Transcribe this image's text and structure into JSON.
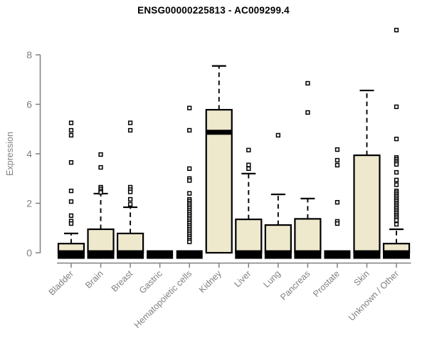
{
  "chart_data": {
    "type": "boxplot",
    "title": "ENSG00000225813 - AC009299.4",
    "ylabel": "Expression",
    "xlabel": "",
    "yticks": [
      0,
      2,
      4,
      6,
      8
    ],
    "ylim": [
      0,
      9.2
    ],
    "grid": false,
    "legend": "none",
    "box_fill_color": "#EEE8CD",
    "box_border_color": "#000000",
    "axis_color": "#808080",
    "title_color": "#000000",
    "categories": [
      "Bladder",
      "Brain",
      "Breast",
      "Gastric",
      "Hematopoietic cells",
      "Kidney",
      "Liver",
      "Lung",
      "Pancreas",
      "Prostate",
      "Skin",
      "Unknown / Other"
    ],
    "boxes": [
      {
        "category": "Bladder",
        "q1": 0,
        "median": 0.05,
        "q3": 0.37,
        "whisker_high": 0.78,
        "outliers": [
          5.25,
          4.95,
          4.75,
          3.65,
          2.5,
          2.07,
          1.5,
          1.28,
          1.18
        ]
      },
      {
        "category": "Brain",
        "q1": 0,
        "median": 0.05,
        "q3": 0.95,
        "whisker_high": 2.39,
        "outliers": [
          3.97,
          3.45,
          2.65,
          2.58,
          2.5,
          2.44
        ]
      },
      {
        "category": "Breast",
        "q1": 0,
        "median": 0.05,
        "q3": 0.78,
        "whisker_high": 1.84,
        "outliers": [
          5.25,
          4.95,
          2.65,
          2.55,
          2.46,
          2.16,
          1.96
        ]
      },
      {
        "category": "Gastric",
        "q1": 0,
        "median": 0,
        "q3": 0,
        "whisker_high": null,
        "outliers": []
      },
      {
        "category": "Hematopoietic cells",
        "q1": 0,
        "median": 0,
        "q3": 0,
        "whisker_high": null,
        "outliers": [
          5.85,
          4.95,
          3.4,
          3.0,
          2.92,
          2.4,
          2.16,
          2.09,
          2.01,
          1.94,
          1.86,
          1.79,
          1.71,
          1.64,
          1.56,
          1.49,
          1.41,
          1.34,
          1.26,
          1.19,
          1.11,
          1.04,
          0.96,
          0.89,
          0.81,
          0.74,
          0.66,
          0.59,
          0.51,
          0.44
        ]
      },
      {
        "category": "Kidney",
        "q1": 0,
        "median": 4.87,
        "q3": 5.78,
        "whisker_high": 7.55,
        "outliers": []
      },
      {
        "category": "Liver",
        "q1": 0,
        "median": 0.05,
        "q3": 1.35,
        "whisker_high": 3.2,
        "outliers": [
          4.15,
          3.55,
          3.4
        ]
      },
      {
        "category": "Lung",
        "q1": 0,
        "median": 0.05,
        "q3": 1.12,
        "whisker_high": 2.36,
        "outliers": [
          4.75
        ]
      },
      {
        "category": "Pancreas",
        "q1": 0,
        "median": 0.05,
        "q3": 1.37,
        "whisker_high": 2.19,
        "outliers": [
          6.85,
          5.67
        ]
      },
      {
        "category": "Prostate",
        "q1": 0,
        "median": 0,
        "q3": 0,
        "whisker_high": null,
        "outliers": [
          4.17,
          3.74,
          3.54,
          2.04,
          1.27,
          1.18
        ]
      },
      {
        "category": "Skin",
        "q1": 0,
        "median": 0.05,
        "q3": 3.94,
        "whisker_high": 6.56,
        "outliers": []
      },
      {
        "category": "Unknown / Other",
        "q1": 0,
        "median": 0.05,
        "q3": 0.37,
        "whisker_high": 0.95,
        "outliers": [
          9.0,
          5.9,
          4.6,
          3.85,
          3.78,
          3.71,
          3.64,
          3.57,
          3.25,
          2.94,
          2.75,
          2.5,
          2.43,
          2.36,
          2.29,
          2.22,
          2.15,
          2.08,
          2.01,
          1.94,
          1.87,
          1.8,
          1.73,
          1.66,
          1.59,
          1.52,
          1.45,
          1.38,
          1.31,
          1.15
        ]
      }
    ]
  }
}
